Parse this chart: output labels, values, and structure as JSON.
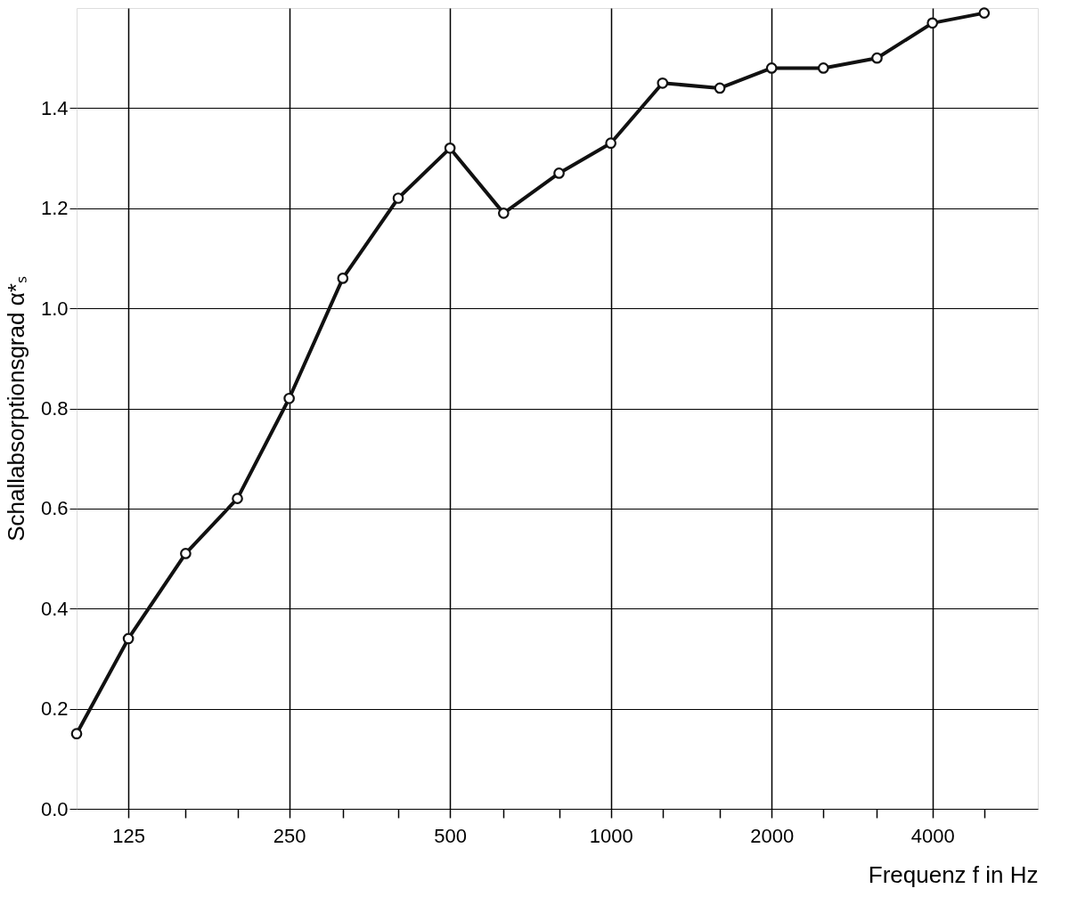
{
  "chart_data": {
    "type": "line",
    "xlabel": "Frequenz f in Hz",
    "ylabel": "Schallabsorptionsgrad α*ₛ",
    "x": [
      100,
      125,
      160,
      200,
      250,
      315,
      400,
      500,
      630,
      800,
      1000,
      1250,
      1600,
      2000,
      2500,
      3150,
      4000,
      5000
    ],
    "series": [
      {
        "color": "#111111",
        "values": [
          0.15,
          0.34,
          0.51,
          0.62,
          0.82,
          1.06,
          1.22,
          1.32,
          1.19,
          1.27,
          1.33,
          1.45,
          1.44,
          1.48,
          1.48,
          1.5,
          1.57,
          1.59
        ]
      }
    ],
    "log": "x",
    "xlim": [
      100,
      6300
    ],
    "xticks": [
      125,
      {
        "value": 160,
        "label": null
      },
      {
        "value": 200,
        "label": null
      },
      250,
      {
        "value": 315,
        "label": null
      },
      {
        "value": 400,
        "label": null
      },
      500,
      {
        "value": 630,
        "label": null
      },
      {
        "value": 800,
        "label": null
      },
      1000,
      {
        "value": 1250,
        "label": null
      },
      {
        "value": 1600,
        "label": null
      },
      2000,
      {
        "value": 2500,
        "label": null
      },
      {
        "value": 3150,
        "label": null
      },
      4000,
      {
        "value": 5000,
        "label": null
      }
    ],
    "ylim": [
      0,
      1.6
    ],
    "yticks": [
      {
        "value": 0,
        "label": "0.0"
      },
      0.2,
      0.4,
      0.6,
      0.8,
      {
        "value": 1,
        "label": "1.0"
      },
      1.2,
      1.4
    ],
    "grid": true,
    "marker": "circle",
    "line_style": "solid"
  }
}
